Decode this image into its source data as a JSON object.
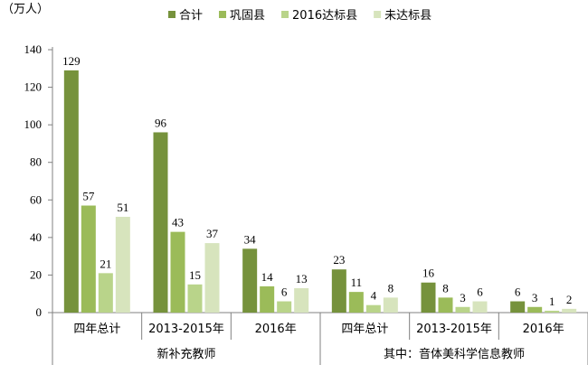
{
  "chart_data": {
    "type": "bar",
    "unit_label": "（万人）",
    "ylim": [
      0,
      140
    ],
    "yticks": [
      0,
      20,
      40,
      60,
      80,
      100,
      120,
      140
    ],
    "categories": [
      "四年总计",
      "2013-2015年",
      "2016年",
      "四年总计",
      "2013-2015年",
      "2016年"
    ],
    "groups": [
      {
        "label": "新补充教师",
        "span": [
          0,
          2
        ]
      },
      {
        "label": "其中：音体美科学信息教师",
        "span": [
          3,
          5
        ]
      }
    ],
    "series": [
      {
        "name": "合计",
        "color": "#76923c",
        "values": [
          129,
          96,
          34,
          23,
          16,
          6
        ]
      },
      {
        "name": "巩固县",
        "color": "#9bbb59",
        "values": [
          57,
          43,
          14,
          11,
          8,
          3
        ]
      },
      {
        "name": "2016达标县",
        "color": "#b9d48a",
        "values": [
          21,
          15,
          6,
          4,
          3,
          1
        ]
      },
      {
        "name": "未达标县",
        "color": "#d7e4bd",
        "values": [
          51,
          37,
          13,
          8,
          6,
          2
        ]
      }
    ],
    "legend_position": "top",
    "grid": false
  }
}
